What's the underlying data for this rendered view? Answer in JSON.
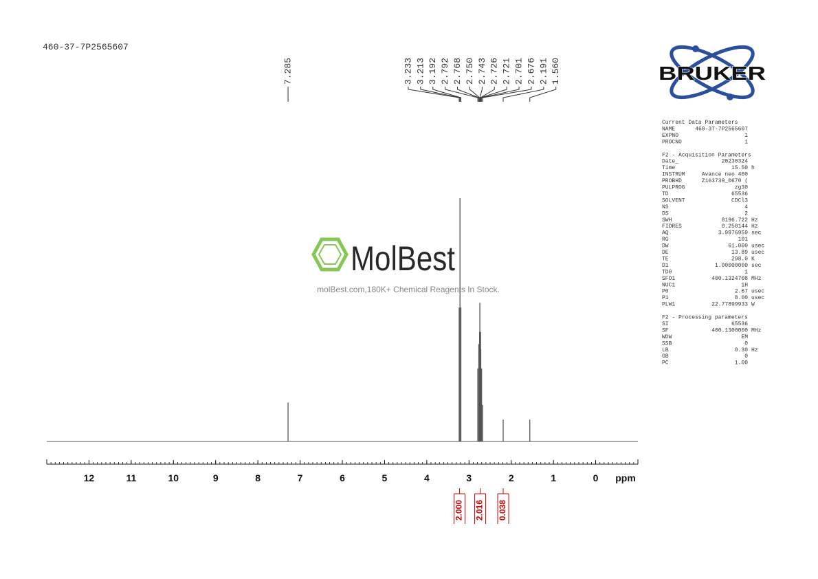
{
  "header": {
    "sample": "460-37-7P2565607"
  },
  "logo": {
    "brand": "BRUKER"
  },
  "watermark": {
    "name": "MolBest",
    "tagline": "molBest.com,180K+ Chemical Reagents In Stock."
  },
  "parameters": {
    "sections": [
      {
        "title": "Current Data Parameters",
        "rows": [
          {
            "key": "NAME",
            "value": "460-37-7P2565607"
          },
          {
            "key": "EXPNO",
            "value": "1"
          },
          {
            "key": "PROCNO",
            "value": "1"
          }
        ]
      },
      {
        "title": "F2 - Acquisition Parameters",
        "rows": [
          {
            "key": "Date_",
            "value": "20230324"
          },
          {
            "key": "Time",
            "value": "15.50",
            "unit": "h"
          },
          {
            "key": "INSTRUM",
            "value": "Avance neo 400"
          },
          {
            "key": "PROBHD",
            "value": "Z163739_0670 ("
          },
          {
            "key": "PULPROG",
            "value": "zg30"
          },
          {
            "key": "TD",
            "value": "65536"
          },
          {
            "key": "SOLVENT",
            "value": "CDCl3"
          },
          {
            "key": "NS",
            "value": "4"
          },
          {
            "key": "DS",
            "value": "2"
          },
          {
            "key": "SWH",
            "value": "8196.722",
            "unit": "Hz"
          },
          {
            "key": "FIDRES",
            "value": "0.250144",
            "unit": "Hz"
          },
          {
            "key": "AQ",
            "value": "3.9976959",
            "unit": "sec"
          },
          {
            "key": "RG",
            "value": "101"
          },
          {
            "key": "DW",
            "value": "61.000",
            "unit": "usec"
          },
          {
            "key": "DE",
            "value": "13.89",
            "unit": "usec"
          },
          {
            "key": "TE",
            "value": "298.0",
            "unit": "K"
          },
          {
            "key": "D1",
            "value": "1.00000000",
            "unit": "sec"
          },
          {
            "key": "TD0",
            "value": "1"
          },
          {
            "key": "SFO1",
            "value": "400.1324708",
            "unit": "MHz"
          },
          {
            "key": "NUC1",
            "value": "1H"
          },
          {
            "key": "P0",
            "value": "2.67",
            "unit": "usec"
          },
          {
            "key": "P1",
            "value": "8.00",
            "unit": "usec"
          },
          {
            "key": "PLW1",
            "value": "22.77899933",
            "unit": "W"
          }
        ]
      },
      {
        "title": "F2 - Processing parameters",
        "rows": [
          {
            "key": "SI",
            "value": "65536"
          },
          {
            "key": "SF",
            "value": "400.1300000",
            "unit": "MHz"
          },
          {
            "key": "WDW",
            "value": "EM"
          },
          {
            "key": "SSB",
            "value": "0"
          },
          {
            "key": "LB",
            "value": "0.30",
            "unit": "Hz"
          },
          {
            "key": "GB",
            "value": "0"
          },
          {
            "key": "PC",
            "value": "1.00"
          }
        ]
      }
    ]
  },
  "chart_data": {
    "type": "nmr",
    "x_label": "ppm",
    "xlim": [
      13,
      -1
    ],
    "xticks": [
      12,
      11,
      10,
      9,
      8,
      7,
      6,
      5,
      4,
      3,
      2,
      1,
      0
    ],
    "ylim": [
      0,
      100
    ],
    "color": "#555555",
    "peaks": {
      "x": [
        7.285,
        3.233,
        3.213,
        3.192,
        2.792,
        2.768,
        2.75,
        2.743,
        2.726,
        2.721,
        2.701,
        2.676,
        2.191,
        1.56
      ],
      "labels": [
        "7.285",
        "3.233",
        "3.213",
        "3.192",
        "2.792",
        "2.768",
        "2.750",
        "2.743",
        "2.726",
        "2.721",
        "2.701",
        "2.676",
        "2.191",
        "1.560"
      ],
      "values": [
        16,
        55,
        100,
        55,
        30,
        40,
        45,
        57,
        45,
        38,
        30,
        15,
        9,
        9
      ]
    },
    "integrals": {
      "color": "#cc0000",
      "ranges": [
        [
          3.3,
          3.15
        ],
        [
          2.85,
          2.62
        ],
        [
          2.22,
          2.16
        ]
      ],
      "values": [
        2.0,
        2.016,
        0.038
      ],
      "value_labels": [
        "2.000",
        "2.016",
        "0.038"
      ]
    }
  }
}
